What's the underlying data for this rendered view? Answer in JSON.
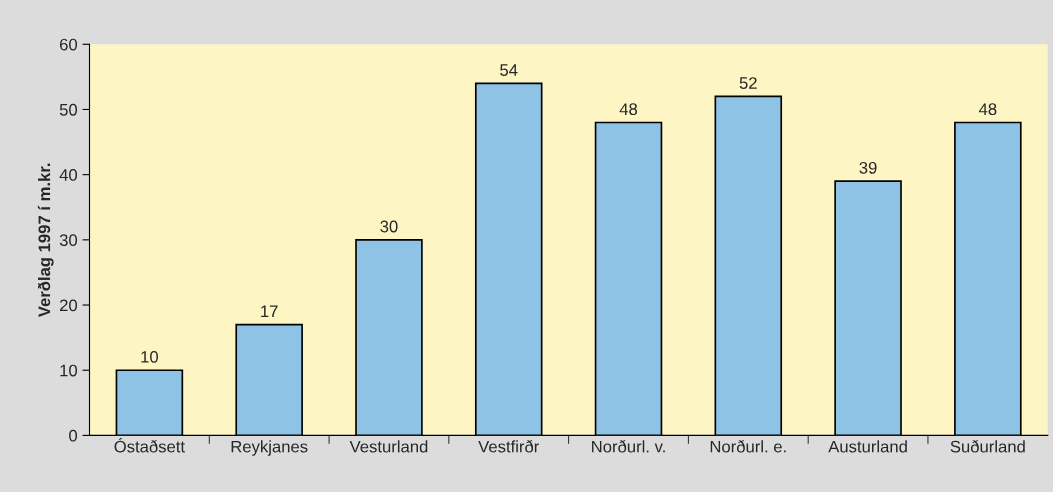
{
  "chart_data": {
    "type": "bar",
    "ylabel": "Verðlag 1997 í m.kr.",
    "categories": [
      "Óstaðsett",
      "Reykjanes",
      "Vesturland",
      "Vestfirðr",
      "Norðurl. v.",
      "Norðurl. e.",
      "Austurland",
      "Suðurland"
    ],
    "values": [
      10,
      17,
      30,
      54,
      48,
      52,
      39,
      48
    ],
    "color": "#8ec3e6",
    "ylim": [
      0,
      60
    ],
    "yticks": [
      0,
      10,
      20,
      30,
      40,
      50,
      60
    ],
    "data_labels": true
  }
}
